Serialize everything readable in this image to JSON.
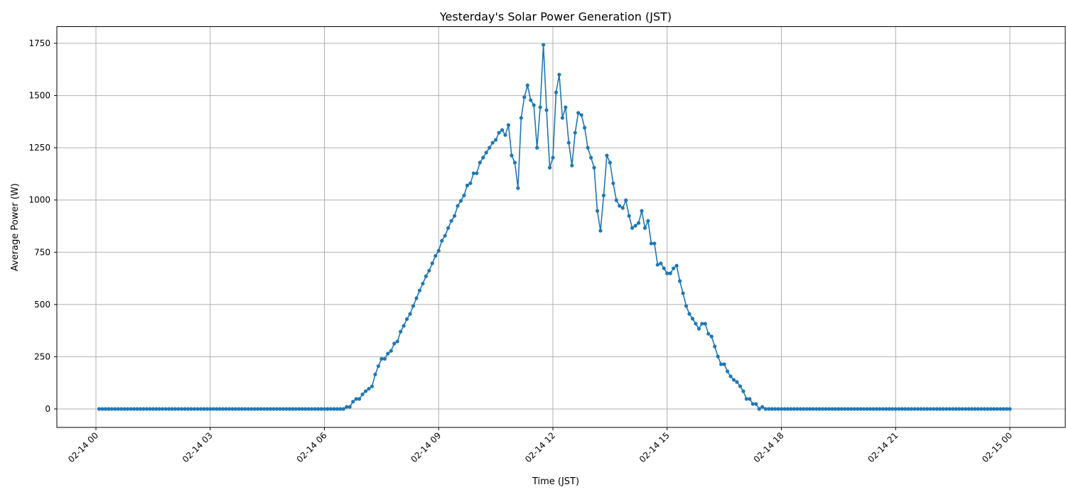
{
  "chart_data": {
    "type": "line",
    "title": "Yesterday's Solar Power Generation (JST)",
    "xlabel": "Time (JST)",
    "ylabel": "Average Power (W)",
    "xlim": [
      "02-13 22:58",
      "02-15 01:02"
    ],
    "ylim": [
      -88,
      1830
    ],
    "grid": true,
    "color": "#1f77b4",
    "marker": "circle",
    "x_tick_labels": [
      "02-14 00",
      "02-14 03",
      "02-14 06",
      "02-14 09",
      "02-14 12",
      "02-14 15",
      "02-14 18",
      "02-14 21",
      "02-15 00"
    ],
    "y_tick_labels": [
      "0",
      "250",
      "500",
      "750",
      "1000",
      "1250",
      "1500",
      "1750"
    ],
    "y_ticks": [
      0,
      250,
      500,
      750,
      1000,
      1250,
      1500,
      1750
    ],
    "series": [
      {
        "x": [
          "02-14 00:05",
          "02-14 00:10",
          "02-14 00:15",
          "02-14 00:20",
          "02-14 00:25",
          "02-14 00:30",
          "02-14 00:35",
          "02-14 00:40",
          "02-14 00:45",
          "02-14 00:50",
          "02-14 00:55",
          "02-14 01:00",
          "02-14 01:05",
          "02-14 01:10",
          "02-14 01:15",
          "02-14 01:20",
          "02-14 01:25",
          "02-14 01:30",
          "02-14 01:35",
          "02-14 01:40",
          "02-14 01:45",
          "02-14 01:50",
          "02-14 01:55",
          "02-14 02:00",
          "02-14 02:05",
          "02-14 02:10",
          "02-14 02:15",
          "02-14 02:20",
          "02-14 02:25",
          "02-14 02:30",
          "02-14 02:35",
          "02-14 02:40",
          "02-14 02:45",
          "02-14 02:50",
          "02-14 02:55",
          "02-14 03:00",
          "02-14 03:05",
          "02-14 03:10",
          "02-14 03:15",
          "02-14 03:20",
          "02-14 03:25",
          "02-14 03:30",
          "02-14 03:35",
          "02-14 03:40",
          "02-14 03:45",
          "02-14 03:50",
          "02-14 03:55",
          "02-14 04:00",
          "02-14 04:05",
          "02-14 04:10",
          "02-14 04:15",
          "02-14 04:20",
          "02-14 04:25",
          "02-14 04:30",
          "02-14 04:35",
          "02-14 04:40",
          "02-14 04:45",
          "02-14 04:50",
          "02-14 04:55",
          "02-14 05:00",
          "02-14 05:05",
          "02-14 05:10",
          "02-14 05:15",
          "02-14 05:20",
          "02-14 05:25",
          "02-14 05:30",
          "02-14 05:35",
          "02-14 05:40",
          "02-14 05:45",
          "02-14 05:50",
          "02-14 05:55",
          "02-14 06:00",
          "02-14 06:05",
          "02-14 06:10",
          "02-14 06:15",
          "02-14 06:20",
          "02-14 06:25",
          "02-14 06:30",
          "02-14 06:35",
          "02-14 06:40",
          "02-14 06:45",
          "02-14 06:50",
          "02-14 06:55",
          "02-14 07:00",
          "02-14 07:05",
          "02-14 07:10",
          "02-14 07:15",
          "02-14 07:20",
          "02-14 07:25",
          "02-14 07:30",
          "02-14 07:35",
          "02-14 07:40",
          "02-14 07:45",
          "02-14 07:50",
          "02-14 07:55",
          "02-14 08:00",
          "02-14 08:05",
          "02-14 08:10",
          "02-14 08:15",
          "02-14 08:20",
          "02-14 08:25",
          "02-14 08:30",
          "02-14 08:35",
          "02-14 08:40",
          "02-14 08:45",
          "02-14 08:50",
          "02-14 08:55",
          "02-14 09:00",
          "02-14 09:05",
          "02-14 09:10",
          "02-14 09:15",
          "02-14 09:20",
          "02-14 09:25",
          "02-14 09:30",
          "02-14 09:35",
          "02-14 09:40",
          "02-14 09:45",
          "02-14 09:50",
          "02-14 09:55",
          "02-14 10:00",
          "02-14 10:05",
          "02-14 10:10",
          "02-14 10:15",
          "02-14 10:20",
          "02-14 10:25",
          "02-14 10:30",
          "02-14 10:35",
          "02-14 10:40",
          "02-14 10:45",
          "02-14 10:50",
          "02-14 10:55",
          "02-14 11:00",
          "02-14 11:05",
          "02-14 11:10",
          "02-14 11:15",
          "02-14 11:20",
          "02-14 11:25",
          "02-14 11:30",
          "02-14 11:35",
          "02-14 11:40",
          "02-14 11:45",
          "02-14 11:50",
          "02-14 11:55",
          "02-14 12:00",
          "02-14 12:05",
          "02-14 12:10",
          "02-14 12:15",
          "02-14 12:20",
          "02-14 12:25",
          "02-14 12:30",
          "02-14 12:35",
          "02-14 12:40",
          "02-14 12:45",
          "02-14 12:50",
          "02-14 12:55",
          "02-14 13:00",
          "02-14 13:05",
          "02-14 13:10",
          "02-14 13:15",
          "02-14 13:20",
          "02-14 13:25",
          "02-14 13:30",
          "02-14 13:35",
          "02-14 13:40",
          "02-14 13:45",
          "02-14 13:50",
          "02-14 13:55",
          "02-14 14:00",
          "02-14 14:05",
          "02-14 14:10",
          "02-14 14:15",
          "02-14 14:20",
          "02-14 14:25",
          "02-14 14:30",
          "02-14 14:35",
          "02-14 14:40",
          "02-14 14:45",
          "02-14 14:50",
          "02-14 14:55",
          "02-14 15:00",
          "02-14 15:05",
          "02-14 15:10",
          "02-14 15:15",
          "02-14 15:20",
          "02-14 15:25",
          "02-14 15:30",
          "02-14 15:35",
          "02-14 15:40",
          "02-14 15:45",
          "02-14 15:50",
          "02-14 15:55",
          "02-14 16:00",
          "02-14 16:05",
          "02-14 16:10",
          "02-14 16:15",
          "02-14 16:20",
          "02-14 16:25",
          "02-14 16:30",
          "02-14 16:35",
          "02-14 16:40",
          "02-14 16:45",
          "02-14 16:50",
          "02-14 16:55",
          "02-14 17:00",
          "02-14 17:05",
          "02-14 17:10",
          "02-14 17:15",
          "02-14 17:20",
          "02-14 17:25",
          "02-14 17:30",
          "02-14 17:35",
          "02-14 17:40",
          "02-14 17:45",
          "02-14 17:50",
          "02-14 17:55",
          "02-14 18:00",
          "02-14 18:05",
          "02-14 18:10",
          "02-14 18:15",
          "02-14 18:20",
          "02-14 18:25",
          "02-14 18:30",
          "02-14 18:35",
          "02-14 18:40",
          "02-14 18:45",
          "02-14 18:50",
          "02-14 18:55",
          "02-14 19:00",
          "02-14 19:05",
          "02-14 19:10",
          "02-14 19:15",
          "02-14 19:20",
          "02-14 19:25",
          "02-14 19:30",
          "02-14 19:35",
          "02-14 19:40",
          "02-14 19:45",
          "02-14 19:50",
          "02-14 19:55",
          "02-14 20:00",
          "02-14 20:05",
          "02-14 20:10",
          "02-14 20:15",
          "02-14 20:20",
          "02-14 20:25",
          "02-14 20:30",
          "02-14 20:35",
          "02-14 20:40",
          "02-14 20:45",
          "02-14 20:50",
          "02-14 20:55",
          "02-14 21:00",
          "02-14 21:05",
          "02-14 21:10",
          "02-14 21:15",
          "02-14 21:20",
          "02-14 21:25",
          "02-14 21:30",
          "02-14 21:35",
          "02-14 21:40",
          "02-14 21:45",
          "02-14 21:50",
          "02-14 21:55",
          "02-14 22:00",
          "02-14 22:05",
          "02-14 22:10",
          "02-14 22:15",
          "02-14 22:20",
          "02-14 22:25",
          "02-14 22:30",
          "02-14 22:35",
          "02-14 22:40",
          "02-14 22:45",
          "02-14 22:50",
          "02-14 22:55",
          "02-14 23:00",
          "02-14 23:05",
          "02-14 23:10",
          "02-14 23:15",
          "02-14 23:20",
          "02-14 23:25",
          "02-14 23:30",
          "02-14 23:35",
          "02-14 23:40",
          "02-14 23:45",
          "02-14 23:50",
          "02-14 23:55",
          "02-15 00:00"
        ],
        "values": [
          0,
          0,
          0,
          0,
          0,
          0,
          0,
          0,
          0,
          0,
          0,
          0,
          0,
          0,
          0,
          0,
          0,
          0,
          0,
          0,
          0,
          0,
          0,
          0,
          0,
          0,
          0,
          0,
          0,
          0,
          0,
          0,
          0,
          0,
          0,
          0,
          0,
          0,
          0,
          0,
          0,
          0,
          0,
          0,
          0,
          0,
          0,
          0,
          0,
          0,
          0,
          0,
          0,
          0,
          0,
          0,
          0,
          0,
          0,
          0,
          0,
          0,
          0,
          0,
          0,
          0,
          0,
          0,
          0,
          0,
          0,
          0,
          0,
          0,
          0,
          0,
          0,
          0,
          10,
          10,
          35,
          48,
          48,
          70,
          85,
          97,
          108,
          165,
          205,
          240,
          240,
          265,
          278,
          313,
          323,
          370,
          398,
          430,
          455,
          493,
          530,
          567,
          600,
          635,
          662,
          697,
          733,
          757,
          805,
          829,
          866,
          900,
          924,
          972,
          996,
          1022,
          1070,
          1080,
          1128,
          1128,
          1179,
          1203,
          1227,
          1250,
          1274,
          1288,
          1322,
          1335,
          1311,
          1359,
          1213,
          1179,
          1057,
          1393,
          1492,
          1549,
          1478,
          1454,
          1250,
          1444,
          1743,
          1430,
          1155,
          1203,
          1515,
          1600,
          1393,
          1444,
          1274,
          1165,
          1322,
          1417,
          1407,
          1346,
          1250,
          1203,
          1155,
          948,
          853,
          1022,
          1213,
          1179,
          1080,
          999,
          972,
          962,
          999,
          924,
          866,
          877,
          890,
          948,
          866,
          900,
          792,
          792,
          690,
          697,
          673,
          649,
          649,
          673,
          686,
          612,
          554,
          493,
          455,
          432,
          408,
          384,
          408,
          408,
          360,
          347,
          299,
          251,
          214,
          214,
          180,
          156,
          139,
          129,
          109,
          85,
          48,
          48,
          24,
          24,
          0,
          10,
          0,
          0,
          0,
          0,
          0,
          0,
          0,
          0,
          0,
          0,
          0,
          0,
          0,
          0,
          0,
          0,
          0,
          0,
          0,
          0,
          0,
          0,
          0,
          0,
          0,
          0,
          0,
          0,
          0,
          0,
          0,
          0,
          0,
          0,
          0,
          0,
          0,
          0,
          0,
          0,
          0,
          0,
          0,
          0,
          0,
          0,
          0,
          0,
          0,
          0,
          0,
          0,
          0,
          0,
          0,
          0,
          0,
          0,
          0,
          0,
          0,
          0,
          0,
          0,
          0,
          0,
          0,
          0,
          0,
          0,
          0,
          0,
          0,
          0,
          0,
          0,
          0,
          0
        ]
      }
    ]
  }
}
